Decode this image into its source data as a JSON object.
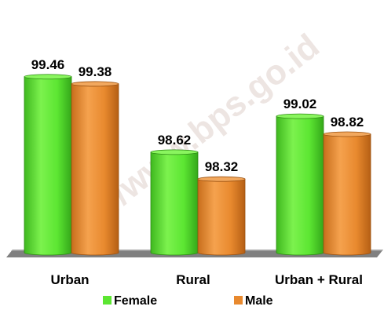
{
  "chart_data": {
    "type": "bar",
    "style": "3d-cylinder",
    "categories": [
      "Urban",
      "Rural",
      "Urban + Rural"
    ],
    "series": [
      {
        "name": "Female",
        "color": "#5ce632",
        "values": [
          99.46,
          98.62,
          99.02
        ]
      },
      {
        "name": "Male",
        "color": "#e8892e",
        "values": [
          99.38,
          98.32,
          98.82
        ]
      }
    ],
    "value_labels": [
      [
        "99.46",
        "99.38"
      ],
      [
        "98.62",
        "98.32"
      ],
      [
        "99.02",
        "98.82"
      ]
    ],
    "ylim": [
      0,
      100
    ],
    "grid": false,
    "legend": {
      "placement": "bottom",
      "items": [
        "Female",
        "Male"
      ]
    },
    "watermark": "http://www.bps.go.id"
  }
}
